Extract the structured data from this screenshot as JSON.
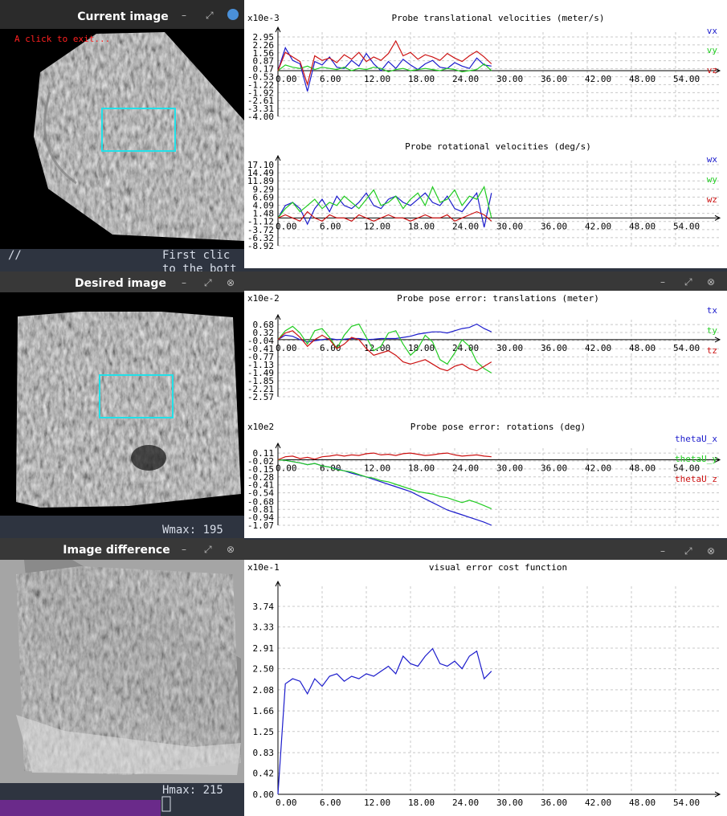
{
  "windows": [
    {
      "title": "Current image",
      "hint": "A click to exit..."
    },
    {
      "title": "Desired image"
    },
    {
      "title": "Image difference"
    }
  ],
  "terminal": {
    "lines": [
      "//",
      "First clic",
      "to the bott",
      "Wmax: 195",
      "Hmax: 215"
    ]
  },
  "chart_data": [
    {
      "type": "line",
      "title": "Probe translational velocities (meter/s)",
      "scale_label": "x10e-3",
      "x": [
        0,
        1,
        2,
        3,
        4,
        5,
        6,
        7,
        8,
        9,
        10,
        11,
        12,
        13,
        14,
        15,
        16,
        17,
        18,
        19,
        20,
        21,
        22,
        23,
        24,
        25,
        26,
        27,
        28,
        29
      ],
      "xlim": [
        0,
        60
      ],
      "xticks": [
        {
          "value": 0,
          "label": "0.00"
        },
        {
          "value": 6,
          "label": "6.00"
        },
        {
          "value": 12,
          "label": "12.00"
        },
        {
          "value": 18,
          "label": "18.00"
        },
        {
          "value": 24,
          "label": "24.00"
        },
        {
          "value": 30,
          "label": "30.00"
        },
        {
          "value": 36,
          "label": "36.00"
        },
        {
          "value": 42,
          "label": "42.00"
        },
        {
          "value": 48,
          "label": "48.00"
        },
        {
          "value": 54,
          "label": "54.00"
        }
      ],
      "ylim": [
        -4.0,
        3.37
      ],
      "yticks": [
        2.95,
        2.26,
        1.56,
        0.87,
        0.17,
        -0.53,
        -1.22,
        -1.92,
        -2.61,
        -3.31,
        {
          "value": -4,
          "label": "-4.00"
        }
      ],
      "grid": true,
      "series": [
        {
          "name": "vx",
          "color": "#1c1ccc",
          "values": [
            0,
            2.0,
            0.9,
            0.6,
            -1.8,
            0.8,
            0.5,
            1.2,
            0.3,
            0.2,
            0.9,
            0.4,
            1.5,
            0.6,
            0.0,
            0.8,
            0.2,
            1.0,
            0.5,
            0.1,
            0.6,
            0.9,
            0.3,
            0.2,
            0.7,
            0.4,
            0.2,
            1.1,
            0.5,
            0.4
          ]
        },
        {
          "name": "vy",
          "color": "#22cc22",
          "values": [
            0,
            0.5,
            0.3,
            0.2,
            0.4,
            0.1,
            0.3,
            0.2,
            0.1,
            0.3,
            0.0,
            0.2,
            0.1,
            0.3,
            0.2,
            -0.1,
            0.1,
            0.2,
            0.0,
            0.1,
            0.2,
            0.1,
            0.0,
            0.2,
            0.1,
            -0.1,
            0.0,
            0.1,
            0.6,
            0.0
          ]
        },
        {
          "name": "vz",
          "color": "#cc1111",
          "values": [
            0,
            1.6,
            1.2,
            0.8,
            -1.2,
            1.3,
            0.9,
            1.1,
            0.7,
            1.4,
            1.0,
            1.6,
            0.8,
            1.2,
            0.9,
            1.5,
            2.6,
            1.3,
            1.6,
            1.0,
            1.4,
            1.2,
            0.9,
            1.5,
            1.1,
            0.8,
            1.3,
            1.7,
            1.2,
            0.6
          ]
        }
      ]
    },
    {
      "type": "line",
      "title": "Probe rotational velocities (deg/s)",
      "x": [
        0,
        1,
        2,
        3,
        4,
        5,
        6,
        7,
        8,
        9,
        10,
        11,
        12,
        13,
        14,
        15,
        16,
        17,
        18,
        19,
        20,
        21,
        22,
        23,
        24,
        25,
        26,
        27,
        28,
        29
      ],
      "xlim": [
        0,
        60
      ],
      "xticks": [
        {
          "value": 0,
          "label": "0.00"
        },
        {
          "value": 6,
          "label": "6.00"
        },
        {
          "value": 12,
          "label": "12.00"
        },
        {
          "value": 18,
          "label": "18.00"
        },
        {
          "value": 24,
          "label": "24.00"
        },
        {
          "value": 30,
          "label": "30.00"
        },
        {
          "value": 36,
          "label": "36.00"
        },
        {
          "value": 42,
          "label": "42.00"
        },
        {
          "value": 48,
          "label": "48.00"
        },
        {
          "value": 54,
          "label": "54.00"
        }
      ],
      "ylim": [
        -8.92,
        18.39
      ],
      "yticks": [
        {
          "value": 17.1,
          "label": "17.10"
        },
        14.49,
        11.89,
        9.29,
        6.69,
        4.09,
        1.48,
        -1.12,
        -3.72,
        -6.32,
        -8.92
      ],
      "grid": true,
      "series": [
        {
          "name": "wx",
          "color": "#1c1ccc",
          "values": [
            0,
            4,
            5,
            3,
            -2,
            3,
            6,
            2,
            7,
            4,
            3,
            5,
            8,
            4,
            3,
            6,
            7,
            5,
            4,
            6,
            8,
            5,
            4,
            7,
            3,
            2,
            5,
            8,
            -3,
            8
          ]
        },
        {
          "name": "wy",
          "color": "#22cc22",
          "values": [
            0,
            3,
            5,
            2,
            4,
            6,
            3,
            5,
            4,
            7,
            5,
            3,
            6,
            9,
            4,
            5,
            7,
            3,
            6,
            8,
            4,
            10,
            5,
            6,
            9,
            4,
            7,
            6,
            10,
            0
          ]
        },
        {
          "name": "wz",
          "color": "#cc1111",
          "values": [
            0,
            1,
            0,
            -1,
            2,
            0,
            -1,
            1,
            0,
            0,
            -1,
            1,
            0,
            -1,
            0,
            1,
            0,
            0,
            -1,
            0,
            1,
            0,
            0,
            1,
            -1,
            0,
            1,
            2,
            1,
            -1
          ]
        }
      ]
    },
    {
      "type": "line",
      "title": "Probe pose error: translations (meter)",
      "scale_label": "x10e-2",
      "x": [
        0,
        1,
        2,
        3,
        4,
        5,
        6,
        7,
        8,
        9,
        10,
        11,
        12,
        13,
        14,
        15,
        16,
        17,
        18,
        19,
        20,
        21,
        22,
        23,
        24,
        25,
        26,
        27,
        28,
        29
      ],
      "xlim": [
        0,
        60
      ],
      "xticks": [
        {
          "value": 0,
          "label": "0.00"
        },
        {
          "value": 6,
          "label": "6.00"
        },
        {
          "value": 12,
          "label": "12.00"
        },
        {
          "value": 18,
          "label": "18.00"
        },
        {
          "value": 24,
          "label": "24.00"
        },
        {
          "value": 30,
          "label": "30.00"
        },
        {
          "value": 36,
          "label": "36.00"
        },
        {
          "value": 42,
          "label": "42.00"
        },
        {
          "value": 48,
          "label": "48.00"
        },
        {
          "value": 54,
          "label": "54.00"
        }
      ],
      "ylim": [
        -2.57,
        0.9
      ],
      "yticks": [
        0.68,
        0.32,
        -0.04,
        -0.41,
        -0.77,
        -1.13,
        -1.49,
        -1.85,
        -2.21,
        -2.57
      ],
      "grid": true,
      "series": [
        {
          "name": "tx",
          "color": "#1c1ccc",
          "values": [
            0,
            0.2,
            0.15,
            0.0,
            -0.1,
            -0.05,
            0.0,
            0.05,
            0.0,
            0.02,
            0.05,
            0.05,
            0.0,
            0.02,
            0.05,
            0.05,
            0.05,
            0.1,
            0.15,
            0.25,
            0.3,
            0.35,
            0.35,
            0.3,
            0.4,
            0.5,
            0.55,
            0.7,
            0.5,
            0.35
          ]
        },
        {
          "name": "ty",
          "color": "#22cc22",
          "values": [
            0,
            0.4,
            0.6,
            0.3,
            -0.2,
            0.4,
            0.5,
            0.1,
            -0.4,
            0.2,
            0.6,
            0.7,
            0.1,
            -0.5,
            -0.3,
            0.3,
            0.4,
            -0.2,
            -0.7,
            -0.4,
            0.2,
            -0.1,
            -0.9,
            -1.1,
            -0.6,
            0.0,
            -0.3,
            -1.0,
            -1.3,
            -1.5
          ]
        },
        {
          "name": "tz",
          "color": "#cc1111",
          "values": [
            0,
            0.3,
            0.4,
            0.1,
            -0.3,
            0.0,
            0.2,
            0.0,
            -0.4,
            -0.2,
            0.1,
            0.0,
            -0.4,
            -0.7,
            -0.6,
            -0.5,
            -0.7,
            -1.0,
            -1.1,
            -1.0,
            -0.9,
            -1.1,
            -1.3,
            -1.4,
            -1.2,
            -1.1,
            -1.3,
            -1.4,
            -1.2,
            -1.0
          ]
        }
      ]
    },
    {
      "type": "line",
      "title": "Probe pose error: rotations (deg)",
      "scale_label": "x10e2",
      "x": [
        0,
        1,
        2,
        3,
        4,
        5,
        6,
        7,
        8,
        9,
        10,
        11,
        12,
        13,
        14,
        15,
        16,
        17,
        18,
        19,
        20,
        21,
        22,
        23,
        24,
        25,
        26,
        27,
        28,
        29
      ],
      "xlim": [
        0,
        60
      ],
      "xticks": [
        {
          "value": 0,
          "label": "0.00"
        },
        {
          "value": 6,
          "label": "6.00"
        },
        {
          "value": 12,
          "label": "12.00"
        },
        {
          "value": 18,
          "label": "18.00"
        },
        {
          "value": 24,
          "label": "24.00"
        },
        {
          "value": 30,
          "label": "30.00"
        },
        {
          "value": 36,
          "label": "36.00"
        },
        {
          "value": 42,
          "label": "42.00"
        },
        {
          "value": 48,
          "label": "48.00"
        },
        {
          "value": 54,
          "label": "54.00"
        }
      ],
      "ylim": [
        -1.07,
        0.19
      ],
      "yticks": [
        0.11,
        -0.02,
        -0.15,
        -0.28,
        -0.41,
        -0.54,
        -0.68,
        -0.81,
        -0.94,
        -1.07
      ],
      "grid": true,
      "series": [
        {
          "name": "thetaU_x",
          "color": "#1c1ccc",
          "values": [
            0,
            -0.01,
            -0.03,
            -0.05,
            -0.08,
            -0.06,
            -0.1,
            -0.12,
            -0.15,
            -0.18,
            -0.22,
            -0.25,
            -0.28,
            -0.32,
            -0.36,
            -0.4,
            -0.44,
            -0.48,
            -0.52,
            -0.58,
            -0.64,
            -0.7,
            -0.76,
            -0.82,
            -0.86,
            -0.9,
            -0.94,
            -0.98,
            -1.02,
            -1.07
          ]
        },
        {
          "name": "thetaU_y",
          "color": "#22cc22",
          "values": [
            0,
            -0.01,
            -0.03,
            -0.05,
            -0.08,
            -0.06,
            -0.1,
            -0.12,
            -0.16,
            -0.18,
            -0.2,
            -0.24,
            -0.28,
            -0.3,
            -0.34,
            -0.36,
            -0.4,
            -0.44,
            -0.48,
            -0.52,
            -0.54,
            -0.56,
            -0.6,
            -0.62,
            -0.66,
            -0.7,
            -0.66,
            -0.7,
            -0.75,
            -0.8
          ]
        },
        {
          "name": "thetaU_z",
          "color": "#cc1111",
          "values": [
            0,
            0.05,
            0.06,
            0.02,
            0.04,
            0.01,
            0.05,
            0.06,
            0.08,
            0.06,
            0.08,
            0.07,
            0.1,
            0.11,
            0.08,
            0.09,
            0.07,
            0.1,
            0.11,
            0.09,
            0.07,
            0.08,
            0.1,
            0.11,
            0.08,
            0.06,
            0.07,
            0.08,
            0.06,
            0.05
          ]
        }
      ]
    },
    {
      "type": "line",
      "title": "visual error cost function",
      "scale_label": "x10e-1",
      "x": [
        0,
        1,
        2,
        3,
        4,
        5,
        6,
        7,
        8,
        9,
        10,
        11,
        12,
        13,
        14,
        15,
        16,
        17,
        18,
        19,
        20,
        21,
        22,
        23,
        24,
        25,
        26,
        27,
        28,
        29
      ],
      "xlim": [
        0,
        60
      ],
      "xticks": [
        {
          "value": 0,
          "label": "0.00"
        },
        {
          "value": 6,
          "label": "6.00"
        },
        {
          "value": 12,
          "label": "12.00"
        },
        {
          "value": 18,
          "label": "18.00"
        },
        {
          "value": 24,
          "label": "24.00"
        },
        {
          "value": 30,
          "label": "30.00"
        },
        {
          "value": 36,
          "label": "36.00"
        },
        {
          "value": 42,
          "label": "42.00"
        },
        {
          "value": 48,
          "label": "48.00"
        },
        {
          "value": 54,
          "label": "54.00"
        }
      ],
      "ylim": [
        0,
        4.14
      ],
      "yticks": [
        3.74,
        3.33,
        2.91,
        {
          "value": 2.5,
          "label": "2.50"
        },
        2.08,
        1.66,
        1.25,
        0.83,
        0.42,
        {
          "value": 0,
          "label": "0.00"
        }
      ],
      "grid": true,
      "color": "#1c1ccc",
      "values": [
        0,
        2.2,
        2.3,
        2.25,
        2.0,
        2.3,
        2.15,
        2.35,
        2.4,
        2.25,
        2.35,
        2.3,
        2.4,
        2.35,
        2.45,
        2.55,
        2.4,
        2.75,
        2.6,
        2.55,
        2.75,
        2.9,
        2.6,
        2.55,
        2.65,
        2.5,
        2.75,
        2.85,
        2.3,
        2.45
      ]
    }
  ]
}
